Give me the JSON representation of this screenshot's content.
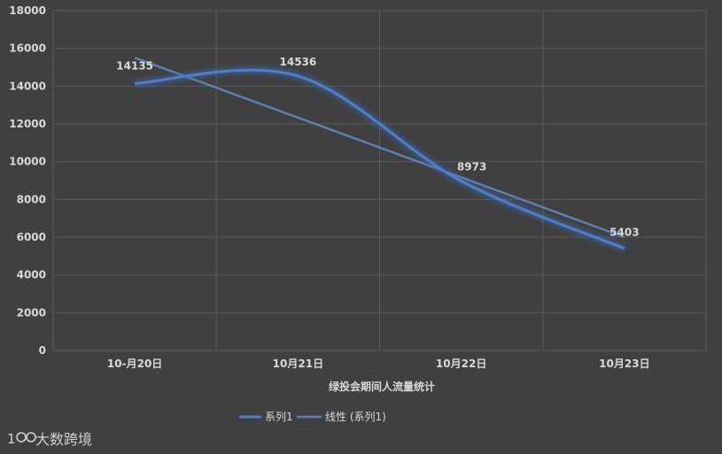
{
  "chart_data": {
    "type": "line",
    "categories": [
      "10-月20日",
      "10月21日",
      "10月22日",
      "10月23日"
    ],
    "series": [
      {
        "name": "系列1",
        "values": [
          14135,
          14536,
          8973,
          5403
        ],
        "color": "#4f7fc4",
        "smooth": true
      },
      {
        "name": "线性 (系列1)",
        "values": [
          15500,
          12500,
          9400,
          6000
        ],
        "color": "#5c7fb0",
        "trendline": true
      }
    ],
    "data_labels": [
      "14135",
      "14536",
      "8973",
      "5403"
    ],
    "yticks": [
      0,
      2000,
      4000,
      6000,
      8000,
      10000,
      12000,
      14000,
      16000,
      18000
    ],
    "ylim": [
      0,
      18000
    ],
    "xlabel": "绿投会期间人流量统计",
    "grid": true,
    "legend_position": "bottom"
  },
  "watermark": {
    "text": "大数跨境",
    "logo": "100"
  }
}
